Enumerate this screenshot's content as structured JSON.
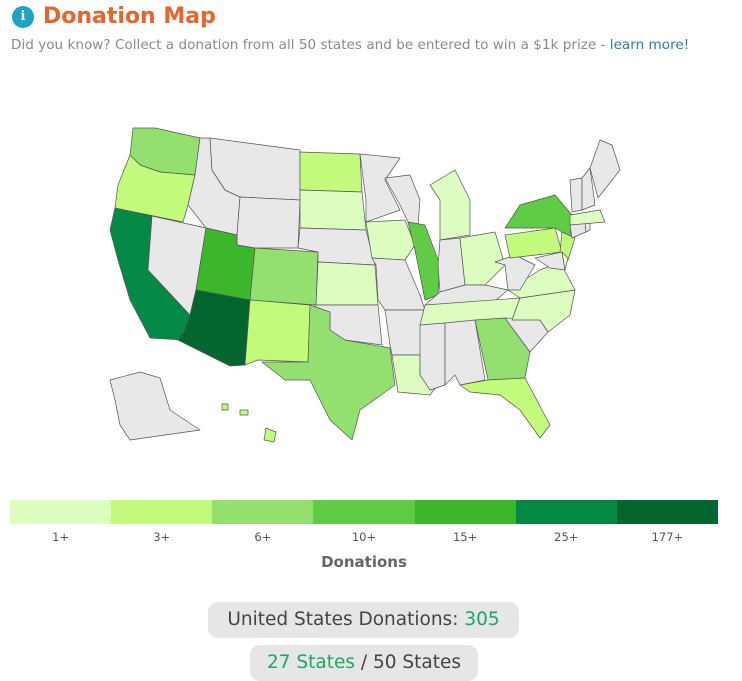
{
  "header": {
    "title": "Donation Map",
    "subtitle": "Did you know? Collect a donation from all 50 states and be entered to win a $1k prize -",
    "link": "learn more!"
  },
  "legend": {
    "title": "Donations",
    "bins": [
      {
        "label": "1+",
        "color": "#dcfcc0"
      },
      {
        "label": "3+",
        "color": "#c2fa7c"
      },
      {
        "label": "6+",
        "color": "#93e070"
      },
      {
        "label": "10+",
        "color": "#60cc46"
      },
      {
        "label": "15+",
        "color": "#3cb62a"
      },
      {
        "label": "25+",
        "color": "#058a46"
      },
      {
        "label": "177+",
        "color": "#04662f"
      }
    ]
  },
  "summary": {
    "donations_label": "United States Donations:",
    "donations": 305,
    "states_covered": "27 States",
    "states_total": "/ 50 States"
  }
}
